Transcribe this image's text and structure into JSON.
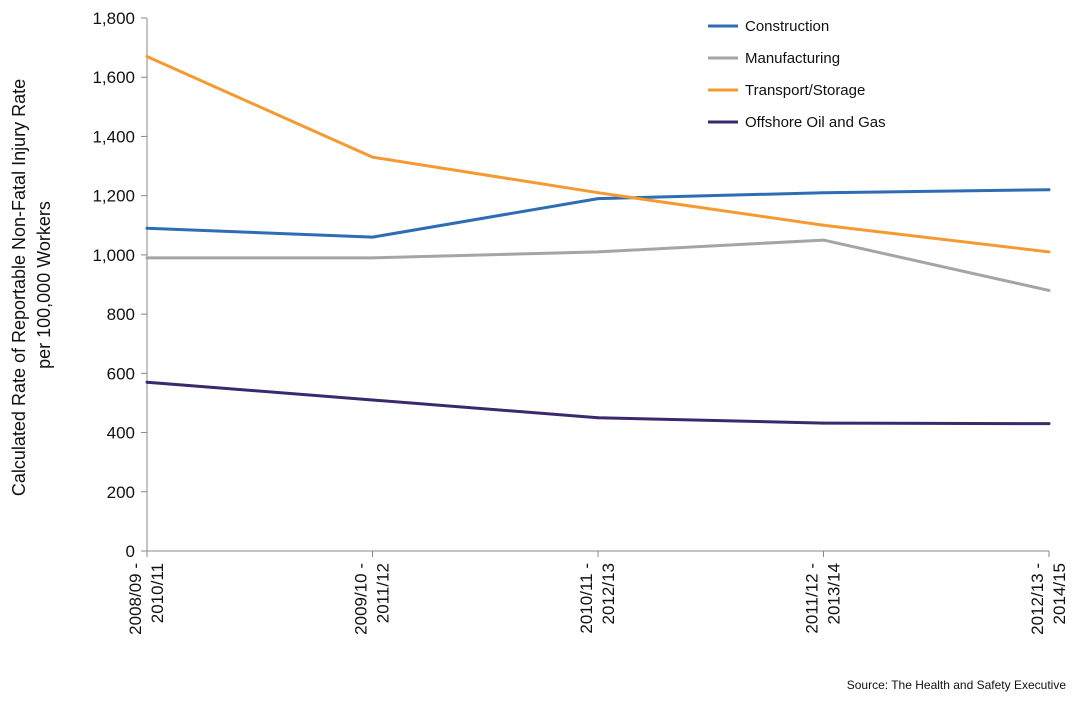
{
  "chart_data": {
    "type": "line",
    "title": "",
    "xlabel": "",
    "ylabel_line1": "Calculated Rate of Reportable Non-Fatal Injury Rate",
    "ylabel_line2": "per 100,000 Workers",
    "categories": [
      [
        "2008/09 -",
        "2010/11"
      ],
      [
        "2009/10 -",
        "2011/12"
      ],
      [
        "2010/11 -",
        "2012/13"
      ],
      [
        "2011/12 -",
        "2013/14"
      ],
      [
        "2012/13 -",
        "2014/15"
      ]
    ],
    "ylim": [
      0,
      1800
    ],
    "yticks": [
      {
        "value": 0,
        "label": "0"
      },
      {
        "value": 200,
        "label": "200"
      },
      {
        "value": 400,
        "label": "400"
      },
      {
        "value": 600,
        "label": "600"
      },
      {
        "value": 800,
        "label": "800"
      },
      {
        "value": 1000,
        "label": "1,000"
      },
      {
        "value": 1200,
        "label": "1,200"
      },
      {
        "value": 1400,
        "label": "1,400"
      },
      {
        "value": 1600,
        "label": "1,600"
      },
      {
        "value": 1800,
        "label": "1,800"
      }
    ],
    "grid": false,
    "legend_position": "top-right",
    "series": [
      {
        "name": "Construction",
        "color": "#2E6DB4",
        "values": [
          1090,
          1060,
          1190,
          1210,
          1220
        ]
      },
      {
        "name": "Manufacturing",
        "color": "#A5A5A5",
        "values": [
          990,
          990,
          1010,
          1050,
          880
        ]
      },
      {
        "name": "Transport/Storage",
        "color": "#F59A31",
        "values": [
          1670,
          1330,
          1210,
          1100,
          1010
        ]
      },
      {
        "name": "Offshore Oil and Gas",
        "color": "#3B2A6B",
        "values": [
          570,
          510,
          450,
          432,
          430
        ]
      }
    ],
    "source": "Source: The Health and Safety Executive"
  }
}
